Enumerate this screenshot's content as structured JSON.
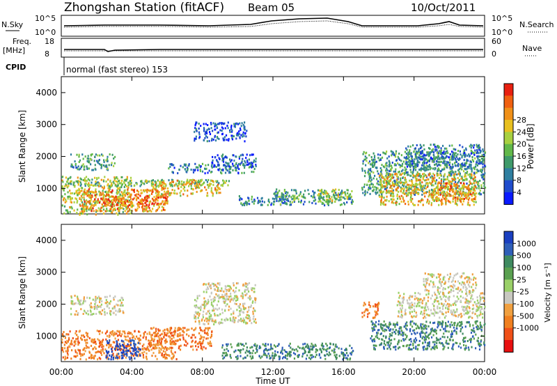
{
  "header": {
    "station": "Zhongshan Station (fitACF)",
    "beam": "Beam 05",
    "date": "10/Oct/2011"
  },
  "strips": {
    "nsky_label": "N.Sky",
    "nsky_ticks": [
      "10^5",
      "10^0"
    ],
    "nsearch_label": "N.Search",
    "nsearch_ticks": [
      "10^5",
      "10^0"
    ],
    "freq_label_top": "Freq.",
    "freq_label_unit": "[MHz]",
    "freq_ticks": [
      "18",
      "8"
    ],
    "nave_label": "Nave",
    "nave_ticks": [
      "60",
      "0"
    ],
    "cpid_label": "CPID",
    "cpid_text": "normal (fast stereo) 153"
  },
  "chart_data": [
    {
      "type": "heatmap",
      "name": "power",
      "ylabel": "Slant Range [km]",
      "xlabel": "",
      "yticks": [
        "1000",
        "2000",
        "3000",
        "4000"
      ],
      "ylim": [
        200,
        4500
      ],
      "colorbar_label": "Power [dB]",
      "colorbar_ticks": [
        "4",
        "8",
        "12",
        "16",
        "20",
        "24",
        "28"
      ],
      "colorbar_colors": [
        "#0a1aff",
        "#1f4ccc",
        "#2f7fa0",
        "#3f9a6a",
        "#62b84a",
        "#a8d040",
        "#e8c020",
        "#f09018",
        "#f06010",
        "#e82010"
      ],
      "cells": [
        [
          0.0,
          4.0,
          200,
          1400,
          18
        ],
        [
          0.5,
          3.0,
          1600,
          2100,
          10
        ],
        [
          1.0,
          6.0,
          300,
          1000,
          24
        ],
        [
          2.0,
          6.0,
          500,
          800,
          28
        ],
        [
          0.5,
          9.5,
          1100,
          1300,
          15
        ],
        [
          5.0,
          9.0,
          800,
          1300,
          20
        ],
        [
          6.0,
          11.0,
          1500,
          1800,
          8
        ],
        [
          8.5,
          11.0,
          1700,
          2100,
          6
        ],
        [
          7.5,
          10.5,
          2500,
          3100,
          6
        ],
        [
          10.0,
          13.0,
          500,
          800,
          7
        ],
        [
          12.0,
          16.5,
          500,
          1000,
          10
        ],
        [
          14.5,
          16.2,
          600,
          1000,
          16
        ],
        [
          17.0,
          24.0,
          800,
          2200,
          12
        ],
        [
          18.0,
          23.5,
          500,
          1500,
          20
        ],
        [
          19.5,
          24.0,
          1600,
          2400,
          9
        ],
        [
          21.0,
          23.5,
          600,
          1200,
          24
        ]
      ]
    },
    {
      "type": "heatmap",
      "name": "velocity",
      "ylabel": "Slant Range [km]",
      "xlabel": "Time UT",
      "xticks": [
        "00:00",
        "04:00",
        "08:00",
        "12:00",
        "16:00",
        "20:00",
        "00:00"
      ],
      "yticks": [
        "1000",
        "2000",
        "3000",
        "4000"
      ],
      "ylim": [
        200,
        4500
      ],
      "colorbar_label": "Velocity [m s⁻¹]",
      "colorbar_ticks": [
        "1000",
        "500",
        "100",
        "25",
        "-25",
        "-100",
        "-500",
        "-1000"
      ],
      "colorbar_colors": [
        "#1a3fc0",
        "#2f5fb8",
        "#3f8a60",
        "#5aa050",
        "#9ad068",
        "#c8c8c0",
        "#f0a040",
        "#f08020",
        "#f05018",
        "#e81010"
      ],
      "cells": [
        [
          0.0,
          6.5,
          300,
          1200,
          "-250"
        ],
        [
          0.5,
          3.5,
          1700,
          2300,
          "0"
        ],
        [
          2.5,
          4.5,
          300,
          900,
          "600"
        ],
        [
          5.0,
          8.5,
          600,
          1300,
          "-250"
        ],
        [
          7.5,
          11.0,
          1400,
          2300,
          "0"
        ],
        [
          8.0,
          11.0,
          2300,
          2700,
          "0"
        ],
        [
          9.0,
          16.5,
          300,
          800,
          "200"
        ],
        [
          17.0,
          18.0,
          1600,
          2100,
          "-250"
        ],
        [
          17.5,
          24.0,
          600,
          1500,
          "200"
        ],
        [
          19.0,
          24.0,
          1600,
          2400,
          "0"
        ],
        [
          20.5,
          23.5,
          2400,
          3000,
          "0"
        ]
      ]
    }
  ]
}
